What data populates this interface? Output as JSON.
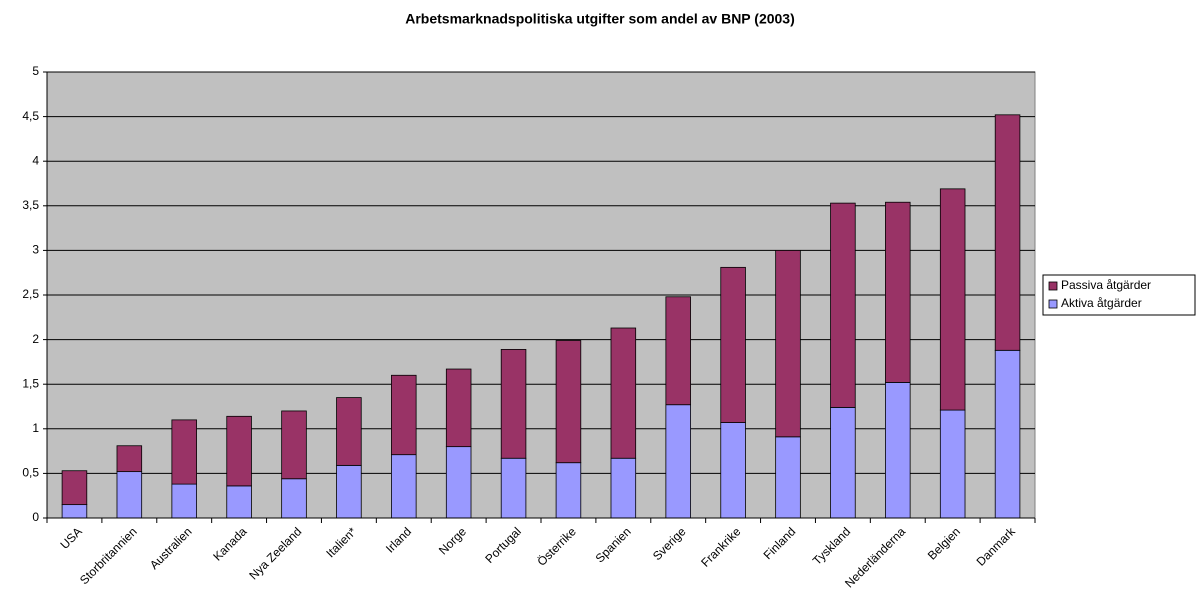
{
  "chart_data": {
    "type": "stacked_bar",
    "title": "Arbetsmarknadspolitiska utgifter som andel av BNP (2003)",
    "categories": [
      "USA",
      "Storbritannien",
      "Australien",
      "Kanada",
      "Nya Zeeland",
      "Italien*",
      "Irland",
      "Norge",
      "Portugal",
      "Österrike",
      "Spanien",
      "Sverige",
      "Frankrike",
      "Finland",
      "Tyskland",
      "Nederländerna",
      "Belgien",
      "Danmark"
    ],
    "series": [
      {
        "name": "Aktiva åtgärder",
        "color": "#9999ff",
        "values": [
          0.15,
          0.52,
          0.38,
          0.36,
          0.44,
          0.59,
          0.71,
          0.8,
          0.67,
          0.62,
          0.67,
          1.27,
          1.07,
          0.91,
          1.24,
          1.52,
          1.21,
          1.88
        ]
      },
      {
        "name": "Passiva åtgärder",
        "color": "#993366",
        "values": [
          0.38,
          0.29,
          0.72,
          0.78,
          0.76,
          0.76,
          0.89,
          0.87,
          1.22,
          1.37,
          1.46,
          1.21,
          1.74,
          2.09,
          2.29,
          2.02,
          2.48,
          2.64
        ]
      }
    ],
    "ylim": [
      0,
      5
    ],
    "yticks": [
      0,
      {
        "value": 0.5,
        "label": "0,5"
      },
      1,
      {
        "value": 1.5,
        "label": "1,5"
      },
      2,
      {
        "value": 2.5,
        "label": "2,5"
      },
      3,
      {
        "value": 3.5,
        "label": "3,5"
      },
      4,
      {
        "value": 4.5,
        "label": "4,5"
      },
      5
    ],
    "grid": true,
    "legend": "right"
  }
}
